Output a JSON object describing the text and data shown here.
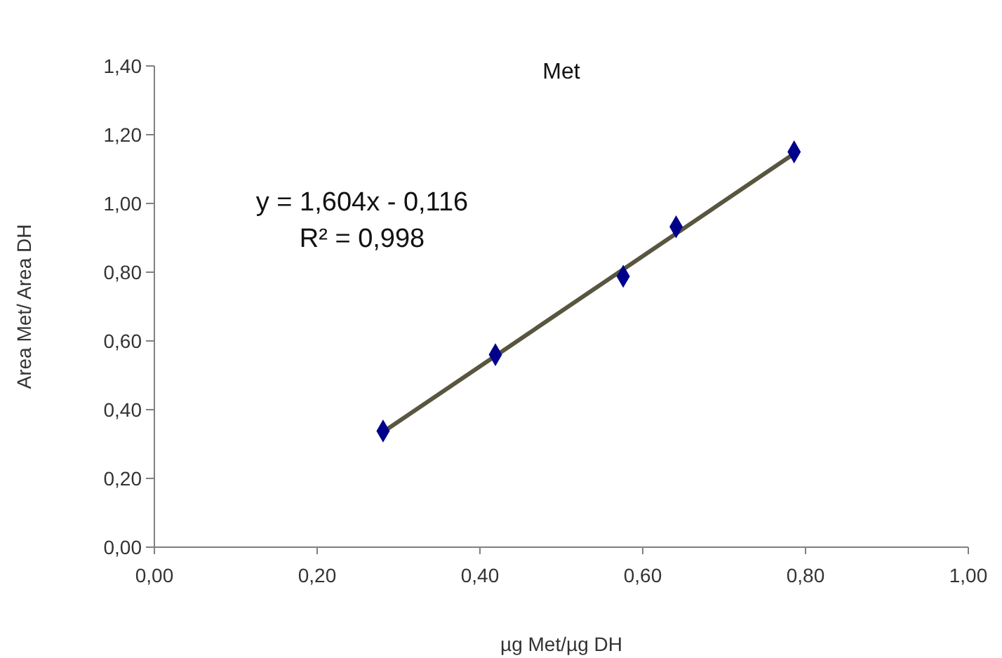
{
  "chart_data": {
    "type": "scatter",
    "title": "Met",
    "xlabel": "µg Met/µg DH",
    "ylabel": "Area Met/ Area DH",
    "x": [
      0.281,
      0.419,
      0.576,
      0.641,
      0.786
    ],
    "series": [
      {
        "color": "#00008b",
        "marker": "diamond",
        "values": [
          0.338,
          0.56,
          0.788,
          0.932,
          1.15
        ]
      },
      {
        "type": "line",
        "color": "#59563f",
        "marker": "none",
        "x": [
          0.281,
          0.786
        ],
        "values": [
          0.335,
          1.145
        ]
      }
    ],
    "annotations": [
      "y = 1,604x - 0,116",
      "R² = 0,998"
    ],
    "xlim": [
      0,
      1
    ],
    "ylim": [
      0,
      1.4
    ],
    "xticks": [
      {
        "value": 0,
        "label": "0,00"
      },
      {
        "value": 0.2,
        "label": "0,20"
      },
      {
        "value": 0.4,
        "label": "0,40"
      },
      {
        "value": 0.6,
        "label": "0,60"
      },
      {
        "value": 0.8,
        "label": "0,80"
      },
      {
        "value": 1,
        "label": "1,00"
      }
    ],
    "yticks": [
      {
        "value": 0,
        "label": "0,00"
      },
      {
        "value": 0.2,
        "label": "0,20"
      },
      {
        "value": 0.4,
        "label": "0,40"
      },
      {
        "value": 0.6,
        "label": "0,60"
      },
      {
        "value": 0.8,
        "label": "0,80"
      },
      {
        "value": 1,
        "label": "1,00"
      },
      {
        "value": 1.2,
        "label": "1,20"
      },
      {
        "value": 1.4,
        "label": "1,40"
      }
    ],
    "grid": false
  }
}
